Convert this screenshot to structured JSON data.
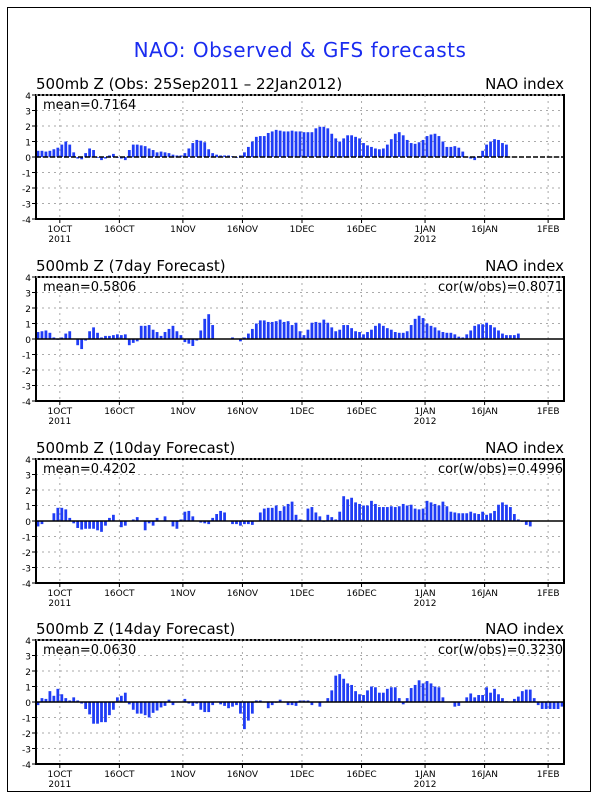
{
  "title": "NAO: Observed & GFS forecasts",
  "colors": {
    "bar": "#1f3cf5",
    "title": "#1a2cf0",
    "grid": "#aaaaaa",
    "axis": "#000000"
  },
  "chart_data": [
    {
      "type": "bar",
      "title": "500mb Z (Obs: 25Sep2011 – 22Jan2012)",
      "right_label": "NAO index",
      "mean_label": "mean=0.7164",
      "cor_label": null,
      "x_start": "25Sep2011",
      "x_unit": "day",
      "ylim": [
        -4,
        4
      ],
      "yticks": [
        "4",
        "3",
        "2",
        "1",
        "0",
        "-1",
        "-2",
        "-3",
        "-4"
      ],
      "xticks": [
        {
          "label": "1OCT",
          "sub": "2011",
          "day": 6
        },
        {
          "label": "16OCT",
          "sub": "",
          "day": 21
        },
        {
          "label": "1NOV",
          "sub": "",
          "day": 37
        },
        {
          "label": "16NOV",
          "sub": "",
          "day": 52
        },
        {
          "label": "1DEC",
          "sub": "",
          "day": 67
        },
        {
          "label": "16DEC",
          "sub": "",
          "day": 82
        },
        {
          "label": "1JAN",
          "sub": "2012",
          "day": 98
        },
        {
          "label": "16JAN",
          "sub": "",
          "day": 113
        },
        {
          "label": "1FEB",
          "sub": "",
          "day": 129
        }
      ],
      "x_range_days": [
        0,
        133
      ],
      "values": [
        0.4,
        0.4,
        0.35,
        0.4,
        0.5,
        0.6,
        0.8,
        1.0,
        0.8,
        0.3,
        -0.1,
        -0.15,
        0.25,
        0.55,
        0.45,
        -0.05,
        -0.2,
        -0.1,
        0.1,
        0.2,
        -0.05,
        -0.1,
        -0.2,
        0.45,
        0.8,
        0.8,
        0.75,
        0.7,
        0.55,
        0.45,
        0.3,
        0.35,
        0.3,
        0.25,
        0.15,
        0.1,
        0.1,
        0.25,
        0.55,
        0.9,
        1.1,
        1.05,
        0.95,
        0.5,
        0.25,
        0.15,
        0.1,
        0.1,
        0.1,
        0.05,
        -0.05,
        0.1,
        0.3,
        0.65,
        1.0,
        1.3,
        1.35,
        1.35,
        1.55,
        1.65,
        1.75,
        1.7,
        1.65,
        1.65,
        1.7,
        1.65,
        1.65,
        1.6,
        1.6,
        1.6,
        1.85,
        1.95,
        1.95,
        1.85,
        1.5,
        1.2,
        1.0,
        1.2,
        1.4,
        1.4,
        1.3,
        1.2,
        0.9,
        0.75,
        0.65,
        0.55,
        0.5,
        0.55,
        0.8,
        1.15,
        1.5,
        1.6,
        1.4,
        1.1,
        0.9,
        0.85,
        0.95,
        1.1,
        1.35,
        1.45,
        1.5,
        1.35,
        1.0,
        0.65,
        0.65,
        0.7,
        0.6,
        0.35,
        0.0,
        -0.1,
        -0.2,
        0.05,
        0.4,
        0.8,
        1.0,
        1.15,
        1.1,
        0.9,
        0.8
      ]
    },
    {
      "type": "bar",
      "title": "500mb Z (7day Forecast)",
      "right_label": "NAO index",
      "mean_label": "mean=0.5806",
      "cor_label": "cor(w/obs)=0.8071",
      "x_start": "25Sep2011",
      "x_unit": "day",
      "ylim": [
        -4,
        4
      ],
      "yticks": [
        "4",
        "3",
        "2",
        "1",
        "0",
        "-1",
        "-2",
        "-3",
        "-4"
      ],
      "xticks": [
        {
          "label": "1OCT",
          "sub": "2011",
          "day": 6
        },
        {
          "label": "16OCT",
          "sub": "",
          "day": 21
        },
        {
          "label": "1NOV",
          "sub": "",
          "day": 37
        },
        {
          "label": "16NOV",
          "sub": "",
          "day": 52
        },
        {
          "label": "1DEC",
          "sub": "",
          "day": 67
        },
        {
          "label": "16DEC",
          "sub": "",
          "day": 82
        },
        {
          "label": "1JAN",
          "sub": "2012",
          "day": 98
        },
        {
          "label": "16JAN",
          "sub": "",
          "day": 113
        },
        {
          "label": "1FEB",
          "sub": "",
          "day": 129
        }
      ],
      "x_range_days": [
        0,
        133
      ],
      "values": [
        0.45,
        0.5,
        0.55,
        0.4,
        0.1,
        -0.05,
        0.1,
        0.35,
        0.5,
        0.0,
        -0.4,
        -0.65,
        -0.1,
        0.5,
        0.75,
        0.4,
        0.1,
        0.2,
        0.2,
        0.25,
        0.3,
        0.25,
        0.3,
        -0.4,
        -0.25,
        -0.15,
        0.85,
        0.85,
        0.9,
        0.6,
        0.45,
        0.2,
        0.45,
        0.65,
        0.85,
        0.5,
        0.25,
        -0.2,
        -0.3,
        -0.45,
        -0.1,
        0.55,
        1.3,
        1.6,
        0.9,
        0.0,
        0.0,
        0.0,
        0.0,
        0.1,
        0.0,
        -0.15,
        0.1,
        0.35,
        0.65,
        1.0,
        1.2,
        1.2,
        1.1,
        1.1,
        1.15,
        1.25,
        1.1,
        1.15,
        0.9,
        1.05,
        0.5,
        0.25,
        0.6,
        1.05,
        1.1,
        1.05,
        1.25,
        1.05,
        0.75,
        0.5,
        0.6,
        0.9,
        0.9,
        0.7,
        0.5,
        0.45,
        0.3,
        0.45,
        0.6,
        0.85,
        1.0,
        0.85,
        0.7,
        0.6,
        0.45,
        0.4,
        0.4,
        0.5,
        0.9,
        1.3,
        1.5,
        1.35,
        1.0,
        0.85,
        0.75,
        0.55,
        0.45,
        0.4,
        0.4,
        0.3,
        0.15,
        0.1,
        0.3,
        0.55,
        0.85,
        0.95,
        0.95,
        1.05,
        0.9,
        0.75,
        0.55,
        0.35,
        0.25,
        0.25,
        0.25,
        0.35
      ]
    },
    {
      "type": "bar",
      "title": "500mb Z (10day Forecast)",
      "right_label": "NAO index",
      "mean_label": "mean=0.4202",
      "cor_label": "cor(w/obs)=0.4996",
      "x_start": "25Sep2011",
      "x_unit": "day",
      "ylim": [
        -4,
        4
      ],
      "yticks": [
        "4",
        "3",
        "2",
        "1",
        "0",
        "-1",
        "-2",
        "-3",
        "-4"
      ],
      "xticks": [
        {
          "label": "1OCT",
          "sub": "2011",
          "day": 6
        },
        {
          "label": "16OCT",
          "sub": "",
          "day": 21
        },
        {
          "label": "1NOV",
          "sub": "",
          "day": 37
        },
        {
          "label": "16NOV",
          "sub": "",
          "day": 52
        },
        {
          "label": "1DEC",
          "sub": "",
          "day": 67
        },
        {
          "label": "16DEC",
          "sub": "",
          "day": 82
        },
        {
          "label": "1JAN",
          "sub": "2012",
          "day": 98
        },
        {
          "label": "16JAN",
          "sub": "",
          "day": 113
        },
        {
          "label": "1FEB",
          "sub": "",
          "day": 129
        }
      ],
      "x_range_days": [
        0,
        133
      ],
      "values": [
        -0.35,
        -0.2,
        0.0,
        0.0,
        0.5,
        0.85,
        0.85,
        0.75,
        0.2,
        -0.15,
        -0.45,
        -0.55,
        -0.5,
        -0.5,
        -0.5,
        -0.6,
        -0.7,
        -0.3,
        0.2,
        0.4,
        0.0,
        -0.4,
        -0.3,
        0.0,
        0.1,
        0.25,
        0.0,
        -0.6,
        -0.15,
        -0.3,
        0.2,
        0.0,
        0.3,
        0.0,
        -0.35,
        -0.5,
        0.1,
        0.6,
        0.65,
        0.3,
        0.0,
        -0.1,
        -0.15,
        -0.2,
        0.2,
        0.45,
        0.65,
        0.55,
        0.0,
        -0.2,
        -0.2,
        -0.3,
        -0.2,
        -0.2,
        -0.25,
        0.0,
        0.55,
        0.8,
        0.85,
        0.85,
        1.0,
        0.65,
        0.95,
        1.1,
        1.25,
        0.4,
        0.1,
        0.0,
        0.8,
        0.9,
        0.55,
        0.3,
        -0.05,
        0.4,
        0.25,
        0.1,
        0.6,
        1.6,
        1.4,
        1.5,
        1.2,
        1.1,
        1.0,
        1.0,
        1.3,
        1.1,
        0.9,
        0.9,
        0.9,
        0.95,
        0.9,
        0.95,
        1.1,
        1.0,
        1.05,
        0.8,
        0.75,
        0.8,
        1.3,
        1.2,
        1.1,
        1.0,
        1.25,
        0.95,
        0.6,
        0.55,
        0.5,
        0.5,
        0.5,
        0.6,
        0.5,
        0.45,
        0.6,
        0.4,
        0.5,
        0.65,
        1.05,
        1.2,
        1.05,
        0.9,
        0.45,
        0.1,
        -0.05,
        -0.25,
        -0.35
      ]
    },
    {
      "type": "bar",
      "title": "500mb Z (14day Forecast)",
      "right_label": "NAO index",
      "mean_label": "mean=0.0630",
      "cor_label": "cor(w/obs)=0.3230",
      "x_start": "25Sep2011",
      "x_unit": "day",
      "ylim": [
        -4,
        4
      ],
      "yticks": [
        "4",
        "3",
        "2",
        "1",
        "0",
        "-1",
        "-2",
        "-3",
        "-4"
      ],
      "xticks": [
        {
          "label": "1OCT",
          "sub": "2011",
          "day": 6
        },
        {
          "label": "16OCT",
          "sub": "",
          "day": 21
        },
        {
          "label": "1NOV",
          "sub": "",
          "day": 37
        },
        {
          "label": "16NOV",
          "sub": "",
          "day": 52
        },
        {
          "label": "1DEC",
          "sub": "",
          "day": 67
        },
        {
          "label": "16DEC",
          "sub": "",
          "day": 82
        },
        {
          "label": "1JAN",
          "sub": "2012",
          "day": 98
        },
        {
          "label": "16JAN",
          "sub": "",
          "day": 113
        },
        {
          "label": "1FEB",
          "sub": "",
          "day": 129
        }
      ],
      "x_range_days": [
        0,
        133
      ],
      "values": [
        -0.2,
        0.25,
        0.2,
        0.7,
        0.4,
        0.85,
        0.5,
        0.25,
        0.1,
        0.3,
        0.1,
        -0.1,
        -0.45,
        -0.8,
        -1.4,
        -1.4,
        -1.3,
        -1.3,
        -0.85,
        -0.5,
        0.3,
        0.4,
        0.6,
        -0.15,
        -0.5,
        -0.75,
        -0.75,
        -0.85,
        -1.0,
        -0.7,
        -0.55,
        -0.35,
        -0.25,
        0.15,
        -0.2,
        0.0,
        0.0,
        0.2,
        -0.1,
        -0.25,
        -0.1,
        -0.5,
        -0.65,
        -0.65,
        -0.2,
        0.0,
        -0.15,
        -0.25,
        -0.4,
        -0.3,
        -0.2,
        -0.75,
        -1.75,
        -1.2,
        -0.75,
        0.1,
        0.1,
        0.0,
        -0.4,
        -0.2,
        -0.05,
        0.15,
        0.0,
        -0.2,
        -0.2,
        -0.25,
        0.1,
        0.1,
        0.1,
        -0.2,
        0.0,
        -0.3,
        0.0,
        0.25,
        0.75,
        1.7,
        1.8,
        1.5,
        1.2,
        1.1,
        0.7,
        0.5,
        0.45,
        0.75,
        1.0,
        0.95,
        0.6,
        0.6,
        0.85,
        0.95,
        0.95,
        0.25,
        -0.15,
        0.25,
        0.9,
        1.1,
        1.4,
        1.2,
        1.35,
        1.2,
        1.0,
        0.95,
        0.3,
        0.0,
        0.0,
        -0.3,
        -0.25,
        0.0,
        0.3,
        0.55,
        0.3,
        0.45,
        0.45,
        0.95,
        0.6,
        0.85,
        0.5,
        0.25,
        0.05,
        0.0,
        0.2,
        0.35,
        0.7,
        0.8,
        0.8,
        0.25,
        -0.2,
        -0.45,
        -0.45,
        -0.45,
        -0.45,
        -0.45,
        -0.3
      ]
    }
  ]
}
